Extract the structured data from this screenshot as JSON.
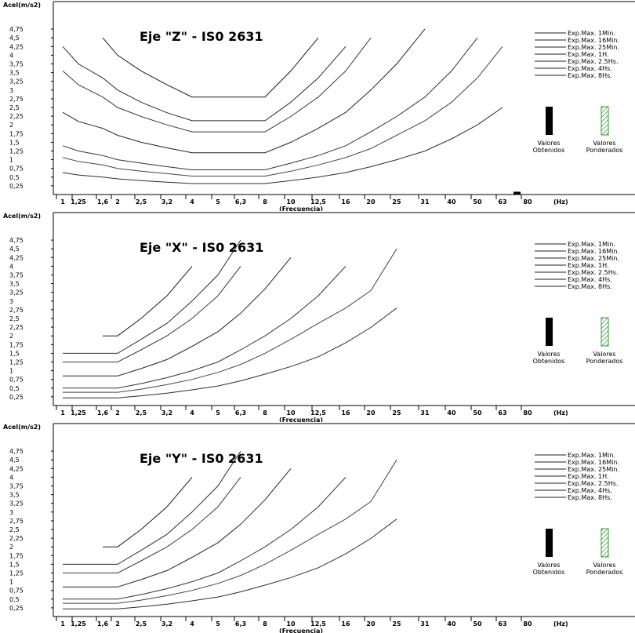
{
  "x_unit": "(Hz)",
  "legend": [
    "Exp.Max. 1Min.",
    "Exp.Max. 16Min.",
    "Exp.Max. 25Min.",
    "Exp.Max. 1H.",
    "Exp.Max. 2.5Hs.",
    "Exp.Max. 4Hs.",
    "Exp.Max. 8Hs."
  ],
  "bars": {
    "obtained_label": [
      "Valores",
      "Obtenidos"
    ],
    "weighted_label": [
      "Valores",
      "Ponderados"
    ],
    "obtained_color": "#000000",
    "weighted_color": "#2e9e2e"
  },
  "chart_data": [
    {
      "type": "line",
      "title": "Eje \"Z\"  -  IS0 2631",
      "ylabel": "Acel(m/s2)",
      "xlabel": "(Frecuencia)",
      "x": [
        "1",
        "1,25",
        "1,6",
        "2",
        "2,5",
        "3,2",
        "4",
        "5",
        "6,3",
        "8",
        "10",
        "12,5",
        "16",
        "20",
        "25",
        "31",
        "40",
        "50",
        "63",
        "80"
      ],
      "yticks": [
        "0,25",
        "0,5",
        "0,75",
        "1",
        "1,25",
        "1,5",
        "1,75",
        "2",
        "2,25",
        "2,5",
        "2,75",
        "3",
        "3,25",
        "3,5",
        "3,75",
        "4",
        "4,25",
        "4,5",
        "4,75"
      ],
      "ylim": [
        0,
        5
      ],
      "grid": false,
      "series": [
        {
          "name": "Exp.Max. 1Min.",
          "values": [
            null,
            null,
            4.5,
            4.0,
            3.55,
            3.15,
            2.8,
            2.8,
            2.8,
            2.8,
            3.55,
            4.5,
            null,
            null,
            null,
            null,
            null,
            null,
            null,
            null
          ]
        },
        {
          "name": "Exp.Max. 16Min.",
          "values": [
            4.25,
            3.75,
            3.35,
            3.0,
            2.65,
            2.35,
            2.12,
            2.12,
            2.12,
            2.12,
            2.65,
            3.35,
            4.25,
            null,
            null,
            null,
            null,
            null,
            null,
            null
          ]
        },
        {
          "name": "Exp.Max. 25Min.",
          "values": [
            3.55,
            3.15,
            2.8,
            2.5,
            2.24,
            2.0,
            1.8,
            1.8,
            1.8,
            1.8,
            2.24,
            2.8,
            3.55,
            4.5,
            null,
            null,
            null,
            null,
            null,
            null
          ]
        },
        {
          "name": "Exp.Max. 1H.",
          "values": [
            2.36,
            2.1,
            1.9,
            1.7,
            1.5,
            1.34,
            1.2,
            1.2,
            1.2,
            1.2,
            1.5,
            1.9,
            2.36,
            3.0,
            3.75,
            4.75,
            null,
            null,
            null,
            null
          ]
        },
        {
          "name": "Exp.Max. 2.5Hs.",
          "values": [
            1.4,
            1.25,
            1.12,
            1.0,
            0.9,
            0.8,
            0.71,
            0.71,
            0.71,
            0.71,
            0.9,
            1.12,
            1.4,
            1.8,
            2.24,
            2.8,
            3.55,
            4.5,
            null,
            null
          ]
        },
        {
          "name": "Exp.Max. 4Hs.",
          "values": [
            1.06,
            0.95,
            0.85,
            0.75,
            0.67,
            0.6,
            0.53,
            0.53,
            0.53,
            0.53,
            0.67,
            0.85,
            1.06,
            1.32,
            1.7,
            2.12,
            2.65,
            3.35,
            4.25,
            null
          ]
        },
        {
          "name": "Exp.Max. 8Hs.",
          "values": [
            0.63,
            0.56,
            0.5,
            0.45,
            0.4,
            0.355,
            0.315,
            0.315,
            0.315,
            0.315,
            0.4,
            0.5,
            0.63,
            0.8,
            1.0,
            1.25,
            1.6,
            2.0,
            2.5,
            null
          ]
        }
      ],
      "obtained_value": 0.08
    },
    {
      "type": "line",
      "title": "Eje \"X\"  -  IS0 2631",
      "ylabel": "Acel(m/s2)",
      "xlabel": "(Frecuencia)",
      "x": [
        "1",
        "1,25",
        "1,6",
        "2",
        "2,5",
        "3,2",
        "4",
        "5",
        "6,3",
        "8",
        "10",
        "12,5",
        "16",
        "20",
        "25",
        "31",
        "40",
        "50",
        "63",
        "80"
      ],
      "yticks": [
        "0,25",
        "0,5",
        "0,75",
        "1",
        "1,25",
        "1,5",
        "1,75",
        "2",
        "2,25",
        "2,5",
        "2,75",
        "3",
        "3,25",
        "3,5",
        "3,75",
        "4",
        "4,25",
        "4,5",
        "4,75"
      ],
      "ylim": [
        0,
        5
      ],
      "grid": false,
      "series": [
        {
          "name": "Exp.Max. 1Min.",
          "values": [
            null,
            null,
            2.0,
            2.0,
            2.5,
            3.15,
            4.0,
            null,
            null,
            null,
            null,
            null,
            null,
            null,
            null,
            null,
            null,
            null,
            null,
            null
          ]
        },
        {
          "name": "Exp.Max. 16Min.",
          "values": [
            1.5,
            1.5,
            1.5,
            1.5,
            1.9,
            2.36,
            3.0,
            3.75,
            4.75,
            null,
            null,
            null,
            null,
            null,
            null,
            null,
            null,
            null,
            null,
            null
          ]
        },
        {
          "name": "Exp.Max. 25Min.",
          "values": [
            1.25,
            1.25,
            1.25,
            1.25,
            1.6,
            2.0,
            2.5,
            3.15,
            4.0,
            null,
            null,
            null,
            null,
            null,
            null,
            null,
            null,
            null,
            null,
            null
          ]
        },
        {
          "name": "Exp.Max. 1H.",
          "values": [
            0.85,
            0.85,
            0.85,
            0.85,
            1.06,
            1.32,
            1.7,
            2.12,
            2.65,
            3.35,
            4.25,
            null,
            null,
            null,
            null,
            null,
            null,
            null,
            null,
            null
          ]
        },
        {
          "name": "Exp.Max. 2.5Hs.",
          "values": [
            0.5,
            0.5,
            0.5,
            0.5,
            0.63,
            0.8,
            1.0,
            1.25,
            1.6,
            2.0,
            2.5,
            3.15,
            4.0,
            null,
            null,
            null,
            null,
            null,
            null,
            null
          ]
        },
        {
          "name": "Exp.Max. 4Hs.",
          "values": [
            0.38,
            0.38,
            0.38,
            0.38,
            0.47,
            0.6,
            0.75,
            0.95,
            1.18,
            1.5,
            1.9,
            2.36,
            2.8,
            3.3,
            4.5,
            null,
            null,
            null,
            null,
            null
          ]
        },
        {
          "name": "Exp.Max. 8Hs.",
          "values": [
            0.22,
            0.22,
            0.22,
            0.22,
            0.28,
            0.355,
            0.45,
            0.56,
            0.71,
            0.9,
            1.12,
            1.4,
            1.8,
            2.24,
            2.8,
            null,
            null,
            null,
            null,
            null
          ]
        }
      ]
    },
    {
      "type": "line",
      "title": "Eje \"Y\"  -  IS0 2631",
      "ylabel": "Acel(m/s2)",
      "xlabel": "(Frecuencia)",
      "x": [
        "1",
        "1,25",
        "1,6",
        "2",
        "2,5",
        "3,2",
        "4",
        "5",
        "6,3",
        "8",
        "10",
        "12,5",
        "16",
        "20",
        "25",
        "31",
        "40",
        "50",
        "63",
        "80"
      ],
      "yticks": [
        "0,25",
        "0,5",
        "0,75",
        "1",
        "1,25",
        "1,5",
        "1,75",
        "2",
        "2,25",
        "2,5",
        "2,75",
        "3",
        "3,25",
        "3,5",
        "3,75",
        "4",
        "4,25",
        "4,5",
        "4,75"
      ],
      "ylim": [
        0,
        5
      ],
      "grid": false,
      "series": [
        {
          "name": "Exp.Max. 1Min.",
          "values": [
            null,
            null,
            2.0,
            2.0,
            2.5,
            3.15,
            4.0,
            null,
            null,
            null,
            null,
            null,
            null,
            null,
            null,
            null,
            null,
            null,
            null,
            null
          ]
        },
        {
          "name": "Exp.Max. 16Min.",
          "values": [
            1.5,
            1.5,
            1.5,
            1.5,
            1.9,
            2.36,
            3.0,
            3.75,
            4.75,
            null,
            null,
            null,
            null,
            null,
            null,
            null,
            null,
            null,
            null,
            null
          ]
        },
        {
          "name": "Exp.Max. 25Min.",
          "values": [
            1.25,
            1.25,
            1.25,
            1.25,
            1.6,
            2.0,
            2.5,
            3.15,
            4.0,
            null,
            null,
            null,
            null,
            null,
            null,
            null,
            null,
            null,
            null,
            null
          ]
        },
        {
          "name": "Exp.Max. 1H.",
          "values": [
            0.85,
            0.85,
            0.85,
            0.85,
            1.06,
            1.32,
            1.7,
            2.12,
            2.65,
            3.35,
            4.25,
            null,
            null,
            null,
            null,
            null,
            null,
            null,
            null,
            null
          ]
        },
        {
          "name": "Exp.Max. 2.5Hs.",
          "values": [
            0.5,
            0.5,
            0.5,
            0.5,
            0.63,
            0.8,
            1.0,
            1.25,
            1.6,
            2.0,
            2.5,
            3.15,
            4.0,
            null,
            null,
            null,
            null,
            null,
            null,
            null
          ]
        },
        {
          "name": "Exp.Max. 4Hs.",
          "values": [
            0.38,
            0.38,
            0.38,
            0.38,
            0.47,
            0.6,
            0.75,
            0.95,
            1.18,
            1.5,
            1.9,
            2.36,
            2.8,
            3.3,
            4.5,
            null,
            null,
            null,
            null,
            null
          ]
        },
        {
          "name": "Exp.Max. 8Hs.",
          "values": [
            0.22,
            0.22,
            0.22,
            0.22,
            0.28,
            0.355,
            0.45,
            0.56,
            0.71,
            0.9,
            1.12,
            1.4,
            1.8,
            2.24,
            2.8,
            null,
            null,
            null,
            null,
            null
          ]
        }
      ]
    }
  ]
}
